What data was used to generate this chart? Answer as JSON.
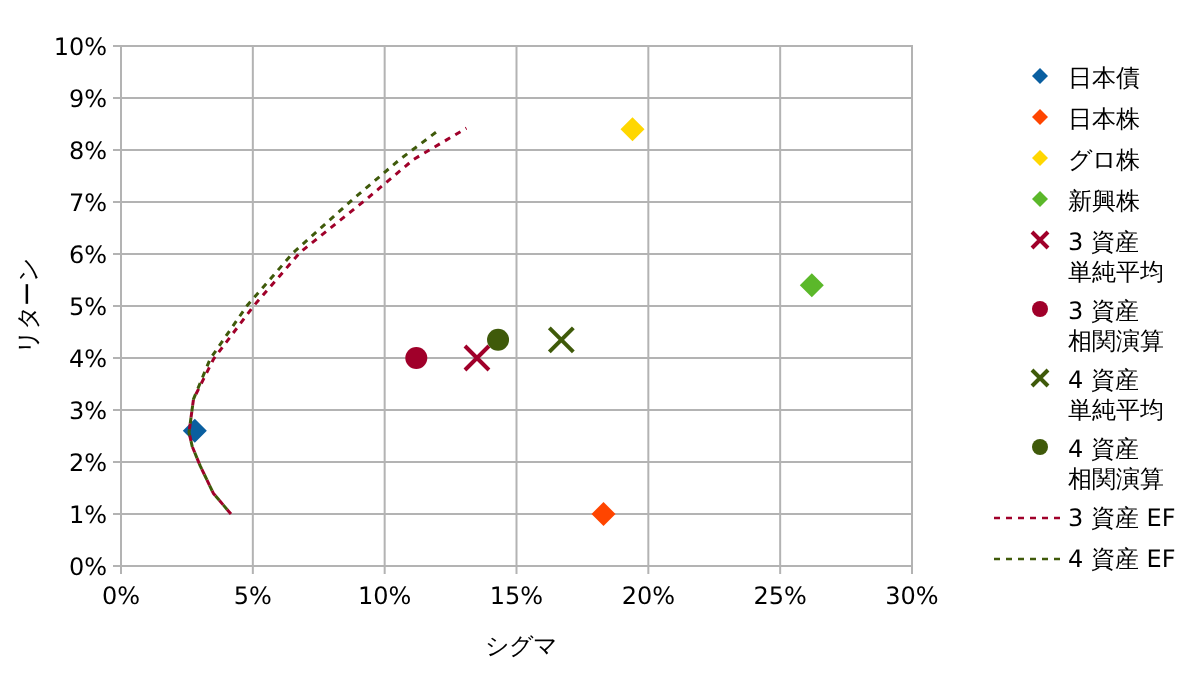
{
  "chart_data": {
    "type": "scatter",
    "xlabel": "シグマ",
    "ylabel": "リターン",
    "xlim": [
      0,
      30
    ],
    "xticks": [
      {
        "value": 0,
        "label": "0%"
      },
      {
        "value": 5,
        "label": "5%"
      },
      {
        "value": 10,
        "label": "10%"
      },
      {
        "value": 15,
        "label": "15%"
      },
      {
        "value": 20,
        "label": "20%"
      },
      {
        "value": 25,
        "label": "25%"
      },
      {
        "value": 30,
        "label": "30%"
      }
    ],
    "ylim": [
      0,
      10
    ],
    "yticks": [
      {
        "value": 0,
        "label": "0%"
      },
      {
        "value": 1,
        "label": "1%"
      },
      {
        "value": 2,
        "label": "2%"
      },
      {
        "value": 3,
        "label": "3%"
      },
      {
        "value": 4,
        "label": "4%"
      },
      {
        "value": 5,
        "label": "5%"
      },
      {
        "value": 6,
        "label": "6%"
      },
      {
        "value": 7,
        "label": "7%"
      },
      {
        "value": 8,
        "label": "8%"
      },
      {
        "value": 9,
        "label": "9%"
      },
      {
        "value": 10,
        "label": "10%"
      }
    ],
    "grid": true,
    "legend": "right",
    "series": [
      {
        "name": "日本債",
        "marker": "diamond",
        "color": "#0a5fa0",
        "x": [
          2.8
        ],
        "values": [
          2.6
        ]
      },
      {
        "name": "日本株",
        "marker": "diamond",
        "color": "#ff4500",
        "x": [
          18.3
        ],
        "values": [
          1.0
        ]
      },
      {
        "name": "グロ株",
        "marker": "diamond",
        "color": "#ffd700",
        "x": [
          19.4
        ],
        "values": [
          8.4
        ]
      },
      {
        "name": "新興株",
        "marker": "diamond",
        "color": "#5bb82a",
        "x": [
          26.2
        ],
        "values": [
          5.4
        ]
      },
      {
        "name": "3 資産単純平均",
        "marker": "cross",
        "color": "#a0002a",
        "x": [
          13.5
        ],
        "values": [
          4.0
        ]
      },
      {
        "name": "3 資産相関演算",
        "marker": "circle",
        "color": "#a0002a",
        "x": [
          11.2
        ],
        "values": [
          4.0
        ]
      },
      {
        "name": "4 資産単純平均",
        "marker": "cross",
        "color": "#3f5a0a",
        "x": [
          16.7
        ],
        "values": [
          4.35
        ]
      },
      {
        "name": "4 資産相関演算",
        "marker": "circle",
        "color": "#3f5a0a",
        "x": [
          14.3
        ],
        "values": [
          4.35
        ]
      },
      {
        "name": "3 資産 EF",
        "type": "line",
        "line_style": "dashed",
        "color": "#a0002a",
        "x": [
          4.17,
          3.5,
          3.0,
          2.7,
          2.58,
          2.75,
          3.51,
          5.03,
          6.79,
          9.32,
          11.1,
          13.1
        ],
        "values": [
          1.0,
          1.4,
          1.93,
          2.3,
          2.57,
          3.21,
          3.98,
          5.0,
          6.03,
          7.06,
          7.82,
          8.42
        ]
      },
      {
        "name": "4 資産 EF",
        "type": "line",
        "line_style": "dashed",
        "color": "#3f5a0a",
        "x": [
          4.17,
          3.5,
          3.0,
          2.7,
          2.58,
          2.75,
          3.38,
          4.77,
          6.54,
          8.81,
          10.58,
          12.1
        ],
        "values": [
          1.0,
          1.4,
          1.93,
          2.3,
          2.57,
          3.21,
          3.98,
          5.0,
          6.03,
          7.06,
          7.82,
          8.4
        ]
      }
    ]
  }
}
